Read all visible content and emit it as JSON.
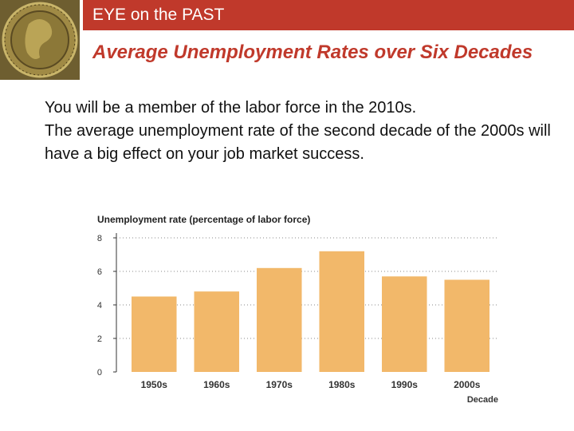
{
  "slide": {
    "banner_title": "EYE on the PAST",
    "heading": "Average Unemployment Rates over Six Decades",
    "paragraphs": [
      "You will be a member of the labor force in the 2010s.",
      "The average unemployment rate of the second decade of the 2000s will have a big effect on your job market success."
    ]
  },
  "colors": {
    "accent": "#c0392b",
    "bar": "#f2b86a",
    "logo": "#7a6a3a"
  },
  "logo_icon": "gold-coin-icon",
  "chart_data": {
    "type": "bar",
    "title": "Unemployment rate (percentage of labor force)",
    "xlabel": "Decade",
    "ylabel": "",
    "categories": [
      "1950s",
      "1960s",
      "1970s",
      "1980s",
      "1990s",
      "2000s"
    ],
    "values": [
      4.5,
      4.8,
      6.2,
      7.2,
      5.7,
      5.5
    ],
    "ylim": [
      0,
      8
    ],
    "yticks": [
      "0",
      "2",
      "4",
      "6",
      "8"
    ],
    "grid": true,
    "legend": "none"
  }
}
